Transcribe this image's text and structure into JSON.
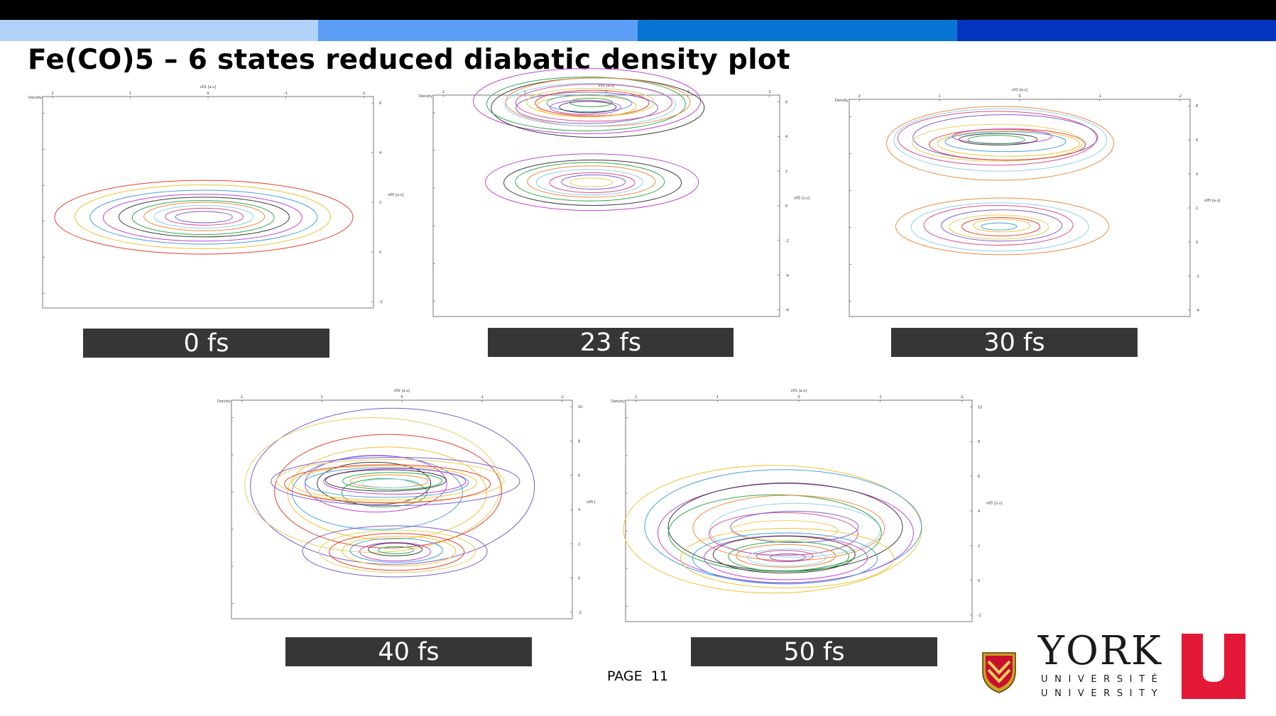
{
  "slide": {
    "title": "Fe(CO)5 – 6 states reduced diabatic density plot",
    "page_label": "PAGE",
    "page_number": "11"
  },
  "header_bands": {
    "colors": [
      "#b3d2fa",
      "#5d9ff7",
      "#0875d4",
      "#0234bd"
    ]
  },
  "plots": [
    {
      "caption": "0 fs",
      "xlabel": "v01 [a.u]",
      "ylabel": "v05 [a.u]",
      "corner": "Density",
      "xticks": [
        "2",
        "1",
        "0",
        "-1",
        "-2"
      ],
      "yticks": [
        "6",
        "4",
        "2",
        "0",
        "-2"
      ]
    },
    {
      "caption": "23 fs",
      "xlabel": "v01 [a.u]",
      "ylabel": "v05 [a.u]",
      "corner": "Density",
      "xticks": [
        "2",
        "1",
        "0",
        "-1",
        "-2"
      ],
      "yticks": [
        "6",
        "4",
        "2",
        "0",
        "-2",
        "-4",
        "-6"
      ]
    },
    {
      "caption": "30 fs",
      "xlabel": "v01 [a.u]",
      "ylabel": "v05 [a.u]",
      "corner": "Density",
      "xticks": [
        "2",
        "1",
        "0",
        "-1",
        "-2"
      ],
      "yticks": [
        "8",
        "6",
        "4",
        "2",
        "0",
        "-2",
        "-4"
      ]
    },
    {
      "caption": "40 fs",
      "xlabel": "v01 [a.u]",
      "ylabel": "v05 [",
      "corner": "Density",
      "xticks": [
        "2",
        "1",
        "0",
        "-1",
        "-2"
      ],
      "yticks": [
        "10",
        "8",
        "6",
        "4",
        "2",
        "0",
        "-2"
      ]
    },
    {
      "caption": "50 fs",
      "xlabel": "v01 [a.u]",
      "ylabel": "v05 [a.u]",
      "corner": "Density",
      "xticks": [
        "2",
        "1",
        "0",
        "-1",
        "-2"
      ],
      "yticks": [
        "10",
        "8",
        "6",
        "4",
        "2",
        "0",
        "-2"
      ]
    }
  ],
  "contour_colors": [
    "#e8402a",
    "#f1c232",
    "#45a0e0",
    "#c043d8",
    "#3b3b3b",
    "#2fa84f",
    "#f08a3c",
    "#8fd1f0",
    "#d94f8a",
    "#7a5cd1",
    "#e4d060"
  ],
  "logo": {
    "name": "YORK",
    "line1": "UNIVERSITÉ",
    "line2": "UNIVERSITY",
    "accent_color": "#e31837"
  }
}
